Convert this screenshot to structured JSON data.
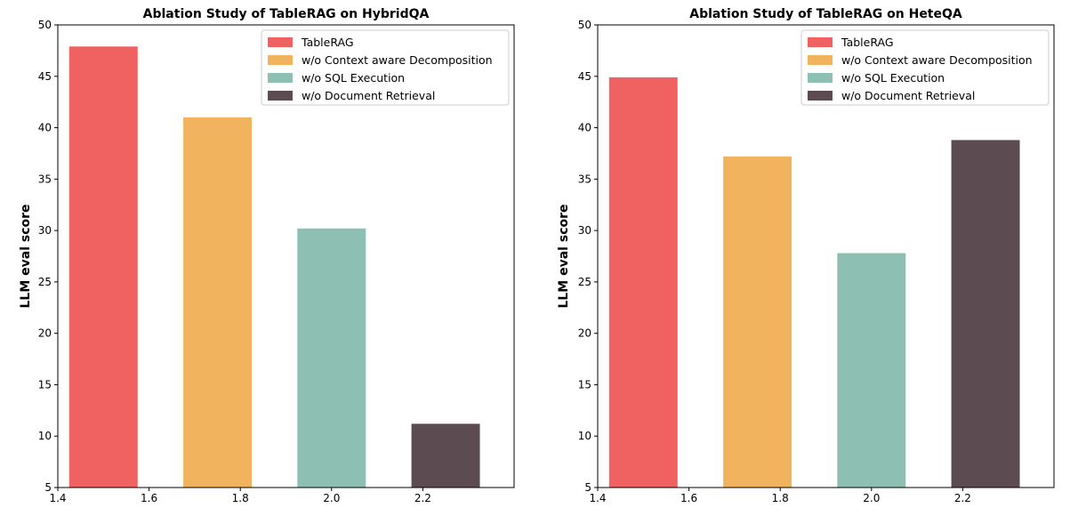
{
  "chart_data": [
    {
      "type": "bar",
      "title": "Ablation Study of TableRAG on HybridQA",
      "ylabel": "LLM eval score",
      "xlabel": "",
      "xlim": [
        1.4,
        2.4
      ],
      "ylim": [
        5,
        50
      ],
      "xticks": [
        "1.4",
        "1.6",
        "1.8",
        "2.0",
        "2.2"
      ],
      "yticks": [
        "5",
        "10",
        "15",
        "20",
        "25",
        "30",
        "35",
        "40",
        "45",
        "50"
      ],
      "legend_position": "top-right",
      "grid": false,
      "series": [
        {
          "name": "TableRAG",
          "x": 1.5,
          "value": 47.9,
          "color": "#F06262"
        },
        {
          "name": "w/o Context aware Decomposition",
          "x": 1.75,
          "value": 41.0,
          "color": "#F2B35F"
        },
        {
          "name": "w/o SQL Execution",
          "x": 2.0,
          "value": 30.2,
          "color": "#8DBFB2"
        },
        {
          "name": "w/o Document Retrieval",
          "x": 2.25,
          "value": 11.2,
          "color": "#5C4B50"
        }
      ]
    },
    {
      "type": "bar",
      "title": "Ablation Study of TableRAG on HeteQA",
      "ylabel": "LLM eval score",
      "xlabel": "",
      "xlim": [
        1.4,
        2.4
      ],
      "ylim": [
        5,
        50
      ],
      "xticks": [
        "1.4",
        "1.6",
        "1.8",
        "2.0",
        "2.2"
      ],
      "yticks": [
        "5",
        "10",
        "15",
        "20",
        "25",
        "30",
        "35",
        "40",
        "45",
        "50"
      ],
      "legend_position": "top-right",
      "grid": false,
      "series": [
        {
          "name": "TableRAG",
          "x": 1.5,
          "value": 44.9,
          "color": "#F06262"
        },
        {
          "name": "w/o Context aware Decomposition",
          "x": 1.75,
          "value": 37.2,
          "color": "#F2B35F"
        },
        {
          "name": "w/o SQL Execution",
          "x": 2.0,
          "value": 27.8,
          "color": "#8DBFB2"
        },
        {
          "name": "w/o Document Retrieval",
          "x": 2.25,
          "value": 38.8,
          "color": "#5C4B50"
        }
      ]
    }
  ]
}
